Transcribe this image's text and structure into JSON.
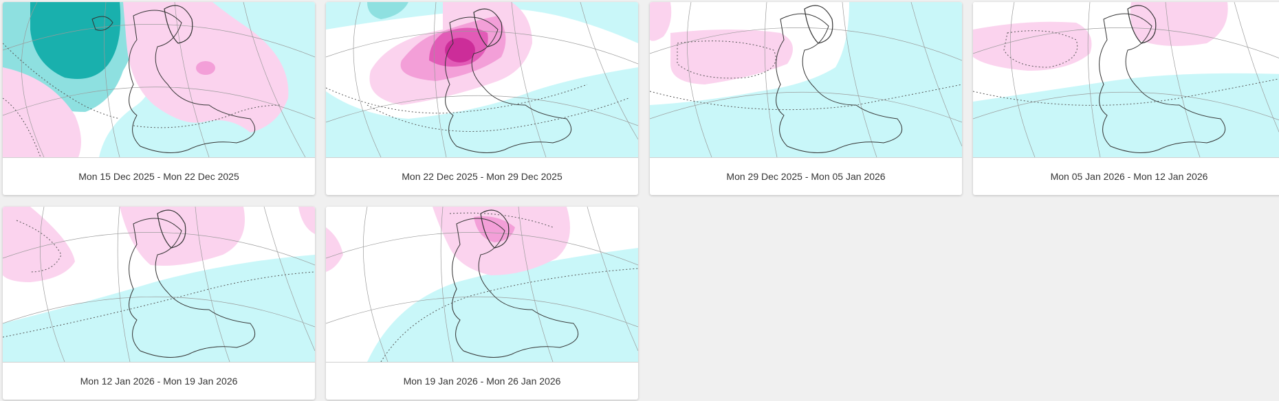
{
  "colors": {
    "background": "#f0f0f0",
    "card": "#ffffff",
    "caption_text": "#333333",
    "anomaly_cold_light": "#c9f7f9",
    "anomaly_cold_mid": "#8ee0e0",
    "anomaly_cold_strong": "#19b0ad",
    "anomaly_warm_light": "#fbd3ee",
    "anomaly_warm_mid": "#f39fd8",
    "anomaly_warm_strong": "#e25bb7",
    "anomaly_warm_max": "#cc2d99",
    "coastline": "#333333",
    "graticule": "#9a9a9a"
  },
  "cards": [
    {
      "caption": "Mon 15 Dec 2025 - Mon 22 Dec 2025",
      "image_icon": "europe-anomaly-map"
    },
    {
      "caption": "Mon 22 Dec 2025 - Mon 29 Dec 2025",
      "image_icon": "europe-anomaly-map"
    },
    {
      "caption": "Mon 29 Dec 2025 - Mon 05 Jan 2026",
      "image_icon": "europe-anomaly-map"
    },
    {
      "caption": "Mon 05 Jan 2026 - Mon 12 Jan 2026",
      "image_icon": "europe-anomaly-map"
    },
    {
      "caption": "Mon 12 Jan 2026 - Mon 19 Jan 2026",
      "image_icon": "europe-anomaly-map"
    },
    {
      "caption": "Mon 19 Jan 2026 - Mon 26 Jan 2026",
      "image_icon": "europe-anomaly-map"
    }
  ]
}
